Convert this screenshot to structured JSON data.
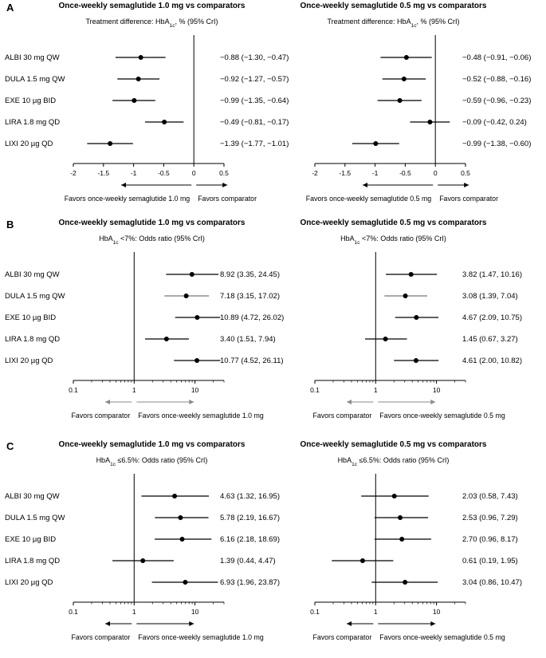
{
  "chart_data": {
    "type": "forest",
    "treatments": [
      "ALBI 30 mg QW",
      "DULA 1.5 mg QW",
      "EXE 10 µg BID",
      "LIRA 1.8 mg QD",
      "LIXI 20 µg QD"
    ],
    "panels": [
      {
        "label": "A",
        "scale": "linear",
        "xlim": [
          -2,
          0.5
        ],
        "ticks": [
          -2,
          -1.5,
          -1,
          -0.5,
          0,
          0.5
        ],
        "tick_labels": [
          "-2",
          "-1.5",
          "-1",
          "-0.5",
          "0",
          "0.5"
        ],
        "ref": 0,
        "subtitle_pre": "Treatment difference: HbA",
        "subtitle_sub": "1c",
        "subtitle_post": ", % (95% CrI)",
        "charts": [
          {
            "title": "Once-weekly semaglutide 1.0 mg vs comparators",
            "left_label": "Favors once-weekly semaglutide 1.0 mg",
            "right_label": "Favors comparator",
            "points": [
              {
                "est": -0.88,
                "lo": -1.3,
                "hi": -0.47,
                "text": "−0.88 (−1.30, −0.47)"
              },
              {
                "est": -0.92,
                "lo": -1.27,
                "hi": -0.57,
                "text": "−0.92 (−1.27, −0.57)"
              },
              {
                "est": -0.99,
                "lo": -1.35,
                "hi": -0.64,
                "text": "−0.99 (−1.35, −0.64)"
              },
              {
                "est": -0.49,
                "lo": -0.81,
                "hi": -0.17,
                "text": "−0.49 (−0.81, −0.17)"
              },
              {
                "est": -1.39,
                "lo": -1.77,
                "hi": -1.01,
                "text": "−1.39 (−1.77, −1.01)"
              }
            ]
          },
          {
            "title": "Once-weekly semaglutide 0.5 mg vs comparators",
            "left_label": "Favors once-weekly semaglutide 0.5 mg",
            "right_label": "Favors comparator",
            "points": [
              {
                "est": -0.48,
                "lo": -0.91,
                "hi": -0.06,
                "text": "−0.48 (−0.91, −0.06)"
              },
              {
                "est": -0.52,
                "lo": -0.88,
                "hi": -0.16,
                "text": "−0.52 (−0.88, −0.16)"
              },
              {
                "est": -0.59,
                "lo": -0.96,
                "hi": -0.23,
                "text": "−0.59 (−0.96, −0.23)"
              },
              {
                "est": -0.09,
                "lo": -0.42,
                "hi": 0.24,
                "text": "−0.09 (−0.42, 0.24)"
              },
              {
                "est": -0.99,
                "lo": -1.38,
                "hi": -0.6,
                "text": "−0.99 (−1.38, −0.60)"
              }
            ]
          }
        ]
      },
      {
        "label": "B",
        "scale": "log",
        "xlim": [
          0.1,
          30
        ],
        "ticks": [
          0.1,
          1,
          10
        ],
        "tick_labels": [
          "0.1",
          "1",
          "10"
        ],
        "ref": 1,
        "subtitle_pre": "HbA",
        "subtitle_sub": "1c",
        "subtitle_post": " <7%:  Odds ratio (95% CrI)",
        "charts": [
          {
            "title": "Once-weekly semaglutide 1.0 mg vs comparators",
            "left_label": "Favors comparator",
            "right_label": "Favors once-weekly semaglutide 1.0 mg",
            "points": [
              {
                "est": 8.92,
                "lo": 3.35,
                "hi": 24.45,
                "text": "8.92 (3.35, 24.45)"
              },
              {
                "est": 7.18,
                "lo": 3.15,
                "hi": 17.02,
                "text": "7.18 (3.15, 17.02)"
              },
              {
                "est": 10.89,
                "lo": 4.72,
                "hi": 26.02,
                "text": "10.89 (4.72, 26.02)"
              },
              {
                "est": 3.4,
                "lo": 1.51,
                "hi": 7.94,
                "text": "3.40 (1.51, 7.94)"
              },
              {
                "est": 10.77,
                "lo": 4.52,
                "hi": 26.11,
                "text": "10.77 (4.52, 26.11)"
              }
            ]
          },
          {
            "title": "Once-weekly semaglutide 0.5 mg vs comparators",
            "left_label": "Favors comparator",
            "right_label": "Favors once-weekly semaglutide 0.5 mg",
            "points": [
              {
                "est": 3.82,
                "lo": 1.47,
                "hi": 10.16,
                "text": "3.82 (1.47, 10.16)"
              },
              {
                "est": 3.08,
                "lo": 1.39,
                "hi": 7.04,
                "text": "3.08 (1.39, 7.04)"
              },
              {
                "est": 4.67,
                "lo": 2.09,
                "hi": 10.75,
                "text": "4.67 (2.09, 10.75)"
              },
              {
                "est": 1.45,
                "lo": 0.67,
                "hi": 3.27,
                "text": "1.45 (0.67, 3.27)"
              },
              {
                "est": 4.61,
                "lo": 2.0,
                "hi": 10.82,
                "text": "4.61 (2.00, 10.82)"
              }
            ]
          }
        ]
      },
      {
        "label": "C",
        "scale": "log",
        "xlim": [
          0.1,
          30
        ],
        "ticks": [
          0.1,
          1,
          10
        ],
        "tick_labels": [
          "0.1",
          "1",
          "10"
        ],
        "ref": 1,
        "subtitle_pre": "HbA",
        "subtitle_sub": "1c",
        "subtitle_post": " ≤6.5%:  Odds ratio (95% CrI)",
        "charts": [
          {
            "title": "Once-weekly semaglutide 1.0 mg vs comparators",
            "left_label": "Favors comparator",
            "right_label": "Favors once-weekly semaglutide 1.0 mg",
            "points": [
              {
                "est": 4.63,
                "lo": 1.32,
                "hi": 16.95,
                "text": "4.63 (1.32, 16.95)"
              },
              {
                "est": 5.78,
                "lo": 2.19,
                "hi": 16.67,
                "text": "5.78 (2.19, 16.67)"
              },
              {
                "est": 6.16,
                "lo": 2.18,
                "hi": 18.69,
                "text": "6.16 (2.18, 18.69)"
              },
              {
                "est": 1.39,
                "lo": 0.44,
                "hi": 4.47,
                "text": "1.39 (0.44, 4.47)"
              },
              {
                "est": 6.93,
                "lo": 1.96,
                "hi": 23.87,
                "text": "6.93 (1.96, 23.87)"
              }
            ]
          },
          {
            "title": "Once-weekly semaglutide 0.5 mg vs comparators",
            "left_label": "Favors comparator",
            "right_label": "Favors once-weekly semaglutide 0.5 mg",
            "points": [
              {
                "est": 2.03,
                "lo": 0.58,
                "hi": 7.43,
                "text": "2.03 (0.58, 7.43)"
              },
              {
                "est": 2.53,
                "lo": 0.96,
                "hi": 7.29,
                "text": "2.53 (0.96, 7.29)"
              },
              {
                "est": 2.7,
                "lo": 0.96,
                "hi": 8.17,
                "text": "2.70 (0.96, 8.17)"
              },
              {
                "est": 0.61,
                "lo": 0.19,
                "hi": 1.95,
                "text": "0.61 (0.19, 1.95)"
              },
              {
                "est": 3.04,
                "lo": 0.86,
                "hi": 10.47,
                "text": "3.04 (0.86, 10.47)"
              }
            ]
          }
        ]
      }
    ]
  }
}
